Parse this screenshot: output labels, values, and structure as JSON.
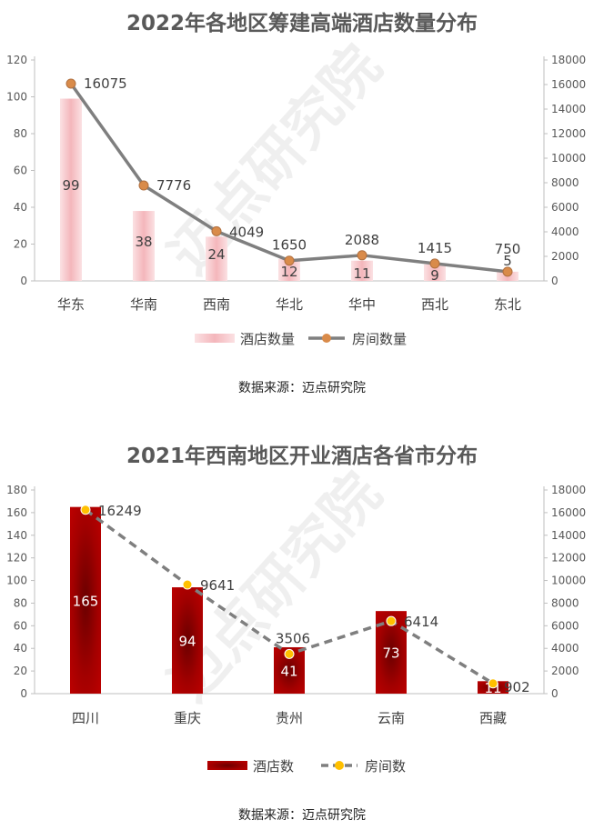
{
  "charts": {
    "c1": {
      "title": "2022年各地区筹建高端酒店数量分布",
      "source": "数据来源：迈点研究院",
      "watermark": "迈点研究院"
    },
    "c2": {
      "title": "2021年西南地区开业酒店各省市分布",
      "source": "数据来源：迈点研究院",
      "watermark": "迈点研究院"
    }
  },
  "chart_data": [
    {
      "type": "bar",
      "title": "2022年各地区筹建高端酒店数量分布",
      "categories": [
        "华东",
        "华南",
        "西南",
        "华北",
        "华中",
        "西北",
        "东北"
      ],
      "series": [
        {
          "name": "酒店数量",
          "kind": "bar",
          "axis": "left",
          "values": [
            99,
            38,
            24,
            12,
            11,
            9,
            5
          ],
          "color": "#f4b6bb"
        },
        {
          "name": "房间数量",
          "kind": "line",
          "axis": "right",
          "values": [
            16075,
            7776,
            4049,
            1650,
            2088,
            1415,
            750
          ],
          "color": "#7f7f7f",
          "marker": "#d98b4a"
        }
      ],
      "ylim": [
        0,
        120
      ],
      "yticks": [
        0,
        20,
        40,
        60,
        80,
        100,
        120
      ],
      "y2lim": [
        0,
        18000
      ],
      "y2ticks": [
        0,
        2000,
        4000,
        6000,
        8000,
        10000,
        12000,
        14000,
        16000,
        18000
      ],
      "legend": "bottom",
      "grid": false
    },
    {
      "type": "bar",
      "title": "2021年西南地区开业酒店各省市分布",
      "categories": [
        "四川",
        "重庆",
        "贵州",
        "云南",
        "西藏"
      ],
      "series": [
        {
          "name": "酒店数",
          "kind": "bar",
          "axis": "left",
          "values": [
            165,
            94,
            41,
            73,
            11
          ],
          "color": "#c00000"
        },
        {
          "name": "房间数",
          "kind": "line",
          "axis": "right",
          "values": [
            16249,
            9641,
            3506,
            6414,
            902
          ],
          "color": "#7f7f7f",
          "marker": "#ffc000"
        }
      ],
      "ylim": [
        0,
        180
      ],
      "yticks": [
        0,
        20,
        40,
        60,
        80,
        100,
        120,
        140,
        160,
        180
      ],
      "y2lim": [
        0,
        18000
      ],
      "y2ticks": [
        0,
        2000,
        4000,
        6000,
        8000,
        10000,
        12000,
        14000,
        16000,
        18000
      ],
      "legend": "bottom",
      "grid": false
    }
  ]
}
